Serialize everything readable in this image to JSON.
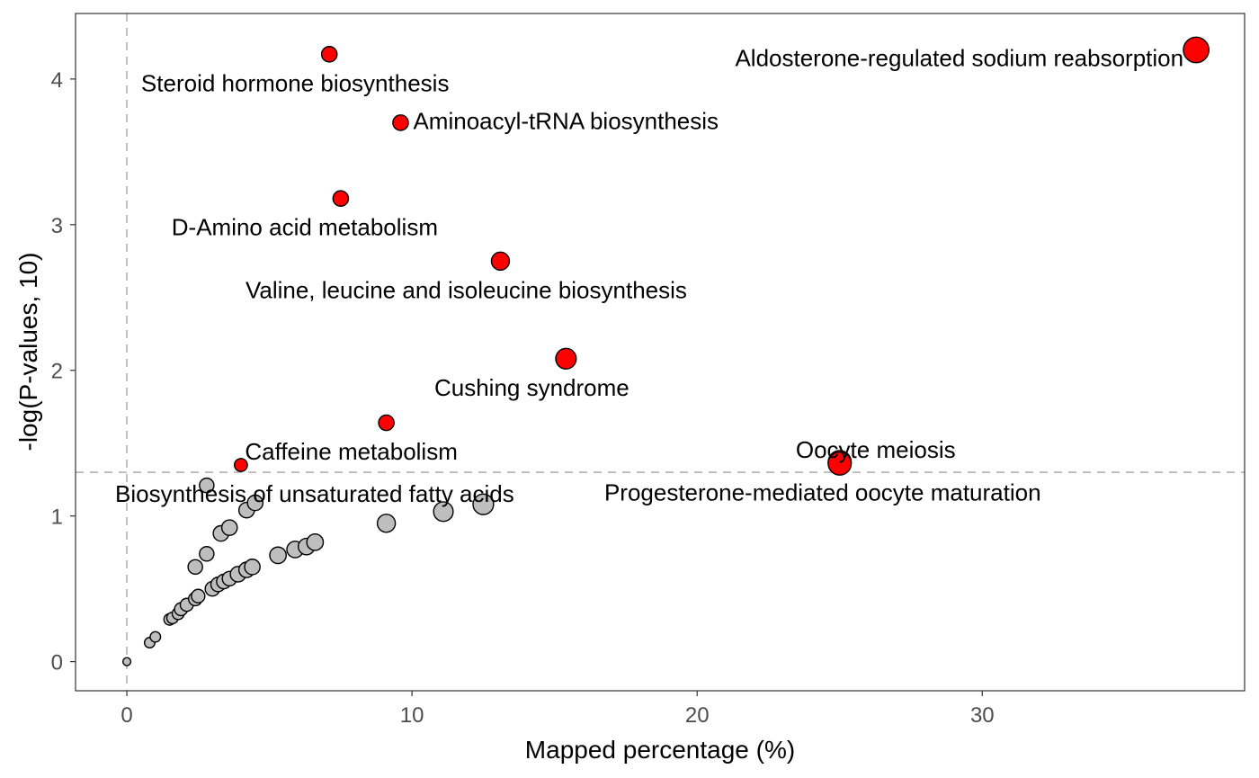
{
  "chart_data": {
    "type": "scatter",
    "title": "",
    "xlabel": "Mapped percentage (%)",
    "ylabel": "-log(P-values, 10)",
    "xlim": [
      -1.8,
      39.2
    ],
    "ylim": [
      -0.2,
      4.45
    ],
    "xticks": [
      0,
      10,
      20,
      30
    ],
    "yticks": [
      0,
      1,
      2,
      3,
      4
    ],
    "grid": false,
    "legend": "none",
    "threshold_y": 1.3,
    "threshold_x": 0,
    "colors": {
      "significant": "#ff0000",
      "nonsignificant": "#bebebe",
      "outline": "#000000",
      "reference_line": "#bfbfbf"
    },
    "significant_points": [
      {
        "label": "Aldosterone-regulated sodium reabsorption",
        "x": 37.5,
        "y": 4.2,
        "size": 4
      },
      {
        "label": "Steroid hormone biosynthesis",
        "x": 7.1,
        "y": 4.17,
        "size": 2
      },
      {
        "label": "Aminoacyl-tRNA biosynthesis",
        "x": 9.6,
        "y": 3.7,
        "size": 2
      },
      {
        "label": "D-Amino acid metabolism",
        "x": 7.5,
        "y": 3.18,
        "size": 2
      },
      {
        "label": "Valine, leucine and isoleucine biosynthesis",
        "x": 13.1,
        "y": 2.75,
        "size": 2.5
      },
      {
        "label": "Cushing syndrome",
        "x": 15.4,
        "y": 2.08,
        "size": 3
      },
      {
        "label": "Caffeine metabolism",
        "x": 9.1,
        "y": 1.64,
        "size": 2
      },
      {
        "label": "Biosynthesis of unsaturated fatty acids",
        "x": 4.0,
        "y": 1.35,
        "size": 1.5
      },
      {
        "label": "Oocyte meiosis",
        "x": 25.0,
        "y": 1.37,
        "size": 3.5
      },
      {
        "label": "Progesterone-mediated oocyte maturation",
        "x": 25.0,
        "y": 1.36,
        "size": 3.5
      }
    ],
    "nonsignificant_points": [
      {
        "x": 0,
        "y": 0,
        "size": 0.5
      },
      {
        "x": 0.8,
        "y": 0.13,
        "size": 1
      },
      {
        "x": 1.0,
        "y": 0.17,
        "size": 1
      },
      {
        "x": 1.5,
        "y": 0.29,
        "size": 1.2
      },
      {
        "x": 1.6,
        "y": 0.3,
        "size": 1.2
      },
      {
        "x": 1.8,
        "y": 0.33,
        "size": 1.3
      },
      {
        "x": 1.9,
        "y": 0.36,
        "size": 1.5
      },
      {
        "x": 2.1,
        "y": 0.39,
        "size": 1.5
      },
      {
        "x": 2.4,
        "y": 0.43,
        "size": 1.6
      },
      {
        "x": 2.5,
        "y": 0.45,
        "size": 1.6
      },
      {
        "x": 2.4,
        "y": 0.65,
        "size": 1.8
      },
      {
        "x": 2.8,
        "y": 0.74,
        "size": 1.8
      },
      {
        "x": 2.8,
        "y": 1.21,
        "size": 1.8
      },
      {
        "x": 3.0,
        "y": 0.5,
        "size": 1.8
      },
      {
        "x": 3.2,
        "y": 0.53,
        "size": 1.8
      },
      {
        "x": 3.4,
        "y": 0.55,
        "size": 1.8
      },
      {
        "x": 3.6,
        "y": 0.57,
        "size": 1.8
      },
      {
        "x": 3.3,
        "y": 0.88,
        "size": 2
      },
      {
        "x": 3.6,
        "y": 0.92,
        "size": 2
      },
      {
        "x": 3.9,
        "y": 0.6,
        "size": 2
      },
      {
        "x": 4.2,
        "y": 0.63,
        "size": 2
      },
      {
        "x": 4.4,
        "y": 0.65,
        "size": 2
      },
      {
        "x": 4.2,
        "y": 1.04,
        "size": 2
      },
      {
        "x": 4.5,
        "y": 1.09,
        "size": 2
      },
      {
        "x": 5.3,
        "y": 0.73,
        "size": 2.2
      },
      {
        "x": 5.9,
        "y": 0.77,
        "size": 2.2
      },
      {
        "x": 6.3,
        "y": 0.79,
        "size": 2.2
      },
      {
        "x": 6.6,
        "y": 0.82,
        "size": 2.2
      },
      {
        "x": 9.1,
        "y": 0.95,
        "size": 2.5
      },
      {
        "x": 11.1,
        "y": 1.03,
        "size": 2.8
      },
      {
        "x": 12.5,
        "y": 1.08,
        "size": 3
      }
    ]
  }
}
